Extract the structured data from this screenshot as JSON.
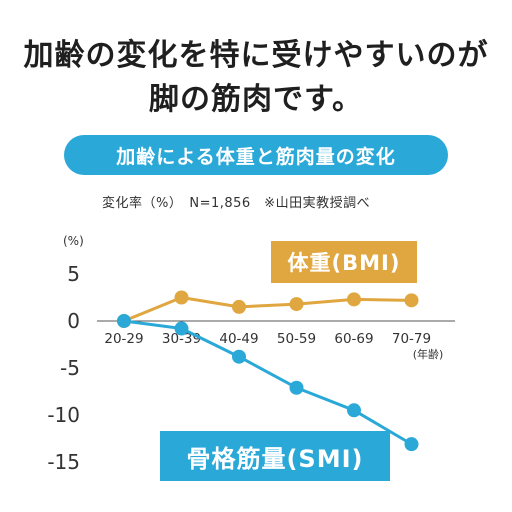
{
  "headline": {
    "line1": "加齢の変化を特に受けやすいのが",
    "line2": "脚の筋肉です。"
  },
  "panel_title": "加齢による体重と筋肉量の変化",
  "source_note": "変化率（%）　N=1,856　※山田実教授調べ",
  "colors": {
    "bmi": "#e0a63f",
    "smi": "#2aa8d8",
    "axis": "#555555"
  },
  "chart_data": {
    "type": "line",
    "title": "加齢による体重と筋肉量の変化",
    "ylabel": "(%)",
    "xlabel": "",
    "x_unit_label": "(年齢)",
    "categories": [
      "20-29",
      "30-39",
      "40-49",
      "50-59",
      "60-69",
      "70-79"
    ],
    "ylim": [
      -15,
      5
    ],
    "yticks": [
      5,
      0,
      -5,
      -10,
      -15
    ],
    "grid": false,
    "series": [
      {
        "name": "体重(BMI)",
        "values": [
          0,
          2.5,
          1.5,
          1.8,
          2.3,
          2.2
        ]
      },
      {
        "name": "骨格筋量(SMI)",
        "values": [
          0,
          -0.8,
          -3.8,
          -7.1,
          -9.5,
          -13.1
        ]
      }
    ]
  }
}
